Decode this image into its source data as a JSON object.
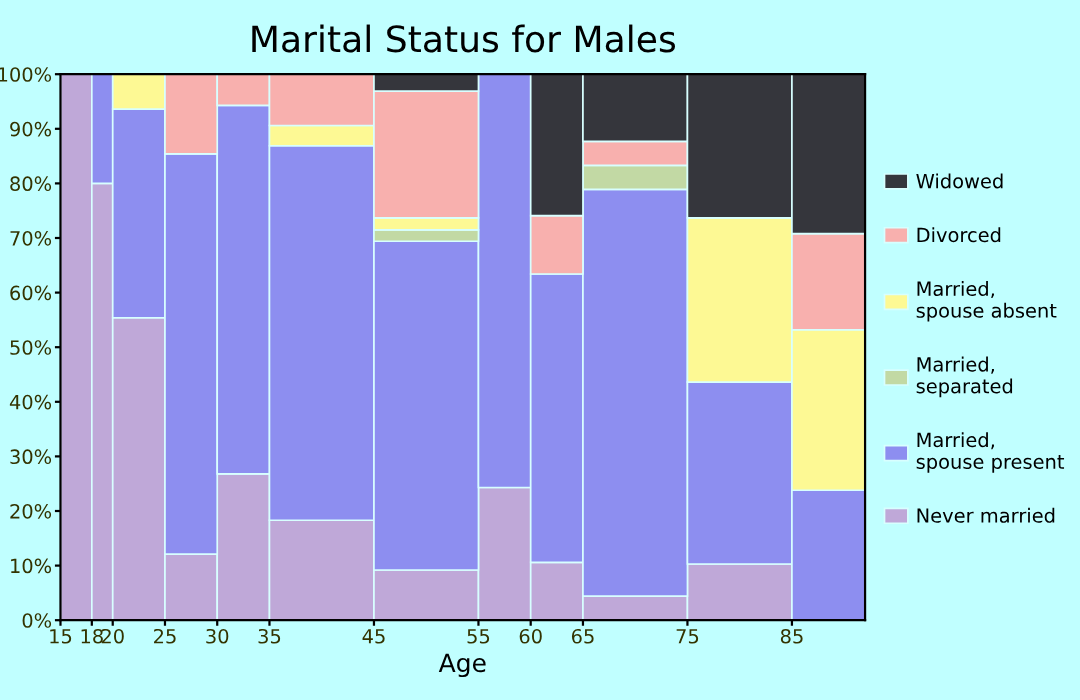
{
  "chart_data": {
    "type": "bar",
    "stacked": true,
    "title": "Marital Status for Males",
    "xlabel": "Age",
    "x": [
      16.5,
      19,
      22.5,
      27.5,
      32.5,
      40,
      50,
      57.5,
      62.5,
      70,
      80,
      88.5
    ],
    "xlim": [
      15,
      92
    ],
    "xticks": [
      15,
      18,
      20,
      25,
      30,
      35,
      45,
      55,
      60,
      65,
      75,
      85
    ],
    "ylim": [
      0,
      100
    ],
    "yticks": [
      {
        "value": 0,
        "label": "0%"
      },
      {
        "value": 10,
        "label": "10%"
      },
      {
        "value": 20,
        "label": "20%"
      },
      {
        "value": 30,
        "label": "30%"
      },
      {
        "value": 40,
        "label": "40%"
      },
      {
        "value": 50,
        "label": "50%"
      },
      {
        "value": 60,
        "label": "60%"
      },
      {
        "value": 70,
        "label": "70%"
      },
      {
        "value": 80,
        "label": "80%"
      },
      {
        "value": 90,
        "label": "90%"
      },
      {
        "value": 100,
        "label": "100%"
      }
    ],
    "series": [
      {
        "name": "Never married",
        "color": "#bfa8d8",
        "values": [
          100,
          80,
          55.4,
          12.1,
          26.8,
          18.3,
          9.2,
          24.3,
          10.6,
          4.4,
          10.3,
          0
        ]
      },
      {
        "name": "Married, spouse present",
        "color": "#8d8ef0",
        "values": [
          0,
          20,
          38.2,
          73.3,
          67.5,
          68.6,
          60.2,
          75.7,
          52.8,
          74.5,
          33.3,
          23.8
        ]
      },
      {
        "name": "Married, separated",
        "color": "#c2d9a4",
        "values": [
          0,
          0,
          0,
          0,
          0,
          0,
          2.1,
          0,
          0,
          4.4,
          0,
          0
        ]
      },
      {
        "name": "Married, spouse absent",
        "color": "#fdf994",
        "values": [
          0,
          0,
          6.4,
          0,
          0,
          3.7,
          2.2,
          0,
          0,
          0,
          30.1,
          29.4
        ]
      },
      {
        "name": "Divorced",
        "color": "#f8b0ae",
        "values": [
          0,
          0,
          0,
          14.6,
          5.7,
          9.4,
          23.2,
          0,
          10.7,
          4.4,
          0,
          17.6
        ]
      },
      {
        "name": "Widowed",
        "color": "#35363c",
        "values": [
          0,
          0,
          0,
          0,
          0,
          0,
          3.1,
          0,
          25.9,
          12.3,
          26.3,
          29.2
        ]
      }
    ],
    "grid": false,
    "legend": "right"
  }
}
